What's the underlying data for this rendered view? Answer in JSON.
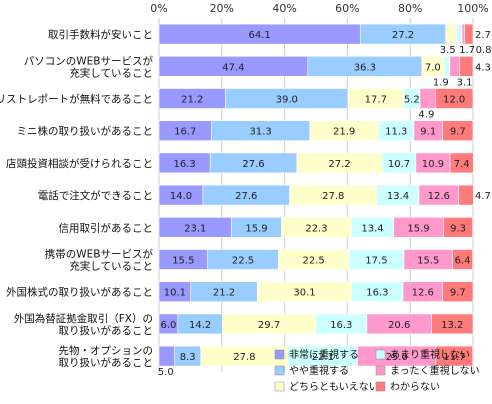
{
  "chart_data": {
    "type": "bar",
    "orientation": "horizontal",
    "stacked": true,
    "percent_scale": true,
    "xlim": [
      0,
      100
    ],
    "x_ticks": [
      "0%",
      "20%",
      "40%",
      "60%",
      "80%",
      "100%"
    ],
    "x_tick_values": [
      0,
      20,
      40,
      60,
      80,
      100
    ],
    "grid": true,
    "legend_position": "bottom-right",
    "categories": [
      "取引手数料が安いこと",
      "パソコンのWEBサービスが\n充実していること",
      "アナリストレポートが無料であること",
      "ミニ株の取り扱いがあること",
      "店頭投資相談が受けられること",
      "電話で注文ができること",
      "信用取引があること",
      "携帯のWEBサービスが\n充実していること",
      "外国株式の取り扱いがあること",
      "外国為替証拠金取引（FX）の\n取り扱いがあること",
      "先物・オプションの\n取り扱いがあること"
    ],
    "series": [
      {
        "name": "非常に重視する",
        "color": "#9999ff",
        "values": [
          64.1,
          47.4,
          21.2,
          16.7,
          16.3,
          14.0,
          23.1,
          15.5,
          10.1,
          6.0,
          5.0
        ]
      },
      {
        "name": "やや重視する",
        "color": "#99ccff",
        "values": [
          27.2,
          36.3,
          39.0,
          31.3,
          27.6,
          27.6,
          15.9,
          22.5,
          21.2,
          14.2,
          8.3
        ]
      },
      {
        "name": "どちらともいえない",
        "color": "#ffffcc",
        "values": [
          3.5,
          7.0,
          17.7,
          21.9,
          27.2,
          27.8,
          22.3,
          22.5,
          30.1,
          29.7,
          27.8
        ]
      },
      {
        "name": "あまり重視しない",
        "color": "#ccffff",
        "values": [
          1.7,
          1.9,
          5.2,
          11.3,
          10.7,
          13.4,
          13.4,
          17.5,
          16.3,
          16.3,
          22.1
        ]
      },
      {
        "name": "まったく重視しない",
        "color": "#ff99cc",
        "values": [
          0.8,
          3.1,
          4.9,
          9.1,
          10.9,
          12.6,
          15.9,
          15.5,
          12.6,
          20.6,
          25.0
        ]
      },
      {
        "name": "わからない",
        "color": "#ff7b7b",
        "values": [
          2.7,
          4.3,
          12.0,
          9.7,
          7.4,
          4.7,
          9.3,
          6.4,
          9.7,
          13.2,
          11.7
        ]
      }
    ]
  }
}
